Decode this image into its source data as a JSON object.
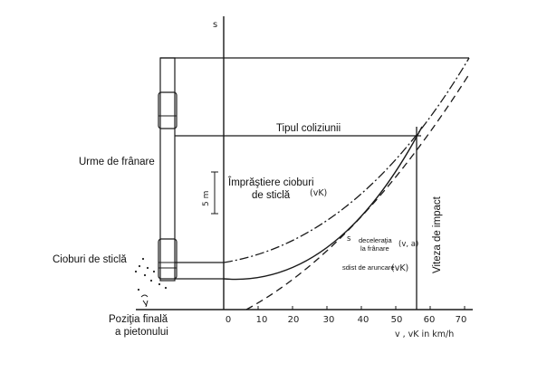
{
  "diagram": {
    "labels": {
      "tipul_coliziunii": "Tipul coliziunii",
      "urme_de_franare": "Urme de frânare",
      "imprastiere_line1": "Împrăştiere cioburi",
      "imprastiere_line2": "de sticlă",
      "cioburi_de_sticla": "Cioburi de sticlă",
      "viteza_de_impact": "Viteza de impact",
      "pozitia_line1": "Poziţia finală",
      "pozitia_line2": "a pietonului",
      "deceleratia_line1": "deceleraţia",
      "deceleratia_line2": "la frânare",
      "sdist_de_aruncare": "sdist de aruncare",
      "var_vk_1": "(vK)",
      "var_va": "(v, a)",
      "var_vk_2": "(vK)",
      "s_symbol": "s",
      "s_curve_symbol": "s",
      "scale_mark": "5 m",
      "x_axis_title": "v , vK  in km/h"
    },
    "x_ticks": [
      "0",
      "10",
      "20",
      "30",
      "40",
      "50",
      "60",
      "70"
    ]
  }
}
